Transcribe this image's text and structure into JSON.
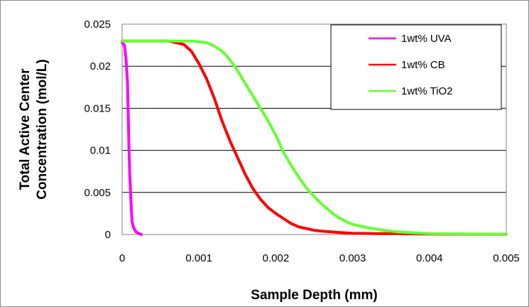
{
  "chart_data": {
    "type": "line",
    "title": "",
    "xlabel": "Sample Depth  (mm)",
    "ylabel": [
      "Total Active Center",
      "Concentration  (mol/L)"
    ],
    "xlim": [
      0,
      0.005
    ],
    "ylim": [
      0,
      0.025
    ],
    "xticks": [
      "0",
      "0.001",
      "0.002",
      "0.003",
      "0.004",
      "0.005"
    ],
    "yticks": [
      "0",
      "0.005",
      "0.01",
      "0.015",
      "0.02",
      "0.025"
    ],
    "grid": "horizontal",
    "legend_position": "top-right",
    "series": [
      {
        "name": "1wt% UVA",
        "color": "#ff00ff",
        "x": [
          0,
          3e-05,
          5e-05,
          7e-05,
          8e-05,
          9e-05,
          0.0001,
          0.00011,
          0.00012,
          0.00013,
          0.00015,
          0.00018,
          0.00022,
          0.00025
        ],
        "y": [
          0.0228,
          0.0225,
          0.021,
          0.018,
          0.014,
          0.01,
          0.007,
          0.005,
          0.003,
          0.0015,
          0.0008,
          0.0003,
          0.0001,
          0.0
        ]
      },
      {
        "name": "1wt% CB",
        "color": "#ff0000",
        "x": [
          0,
          0.0003,
          0.0006,
          0.0008,
          0.0009,
          0.001,
          0.0011,
          0.0012,
          0.0013,
          0.0014,
          0.0015,
          0.0016,
          0.0017,
          0.0018,
          0.0019,
          0.002,
          0.0021,
          0.0022,
          0.0023,
          0.0024,
          0.0025,
          0.0026,
          0.0028,
          0.003,
          0.0033,
          0.0036,
          0.004,
          0.0045,
          0.005
        ],
        "y": [
          0.023,
          0.023,
          0.023,
          0.0226,
          0.0218,
          0.0203,
          0.0185,
          0.0162,
          0.0135,
          0.0112,
          0.0092,
          0.0072,
          0.0055,
          0.0042,
          0.0032,
          0.0025,
          0.0019,
          0.0013,
          0.0009,
          0.0007,
          0.0005,
          0.0004,
          0.00025,
          0.00015,
          0.0001,
          0.0001,
          5e-05,
          3e-05,
          2e-05
        ]
      },
      {
        "name": "1wt% TiO2",
        "color": "#66ff33",
        "x": [
          0,
          0.0005,
          0.0009,
          0.0011,
          0.0012,
          0.0013,
          0.0014,
          0.0015,
          0.0016,
          0.0017,
          0.0018,
          0.0019,
          0.002,
          0.0021,
          0.0022,
          0.0023,
          0.0024,
          0.0025,
          0.0026,
          0.0027,
          0.0028,
          0.0029,
          0.003,
          0.0032,
          0.0034,
          0.0036,
          0.0038,
          0.004,
          0.0045,
          0.005
        ],
        "y": [
          0.023,
          0.023,
          0.023,
          0.0228,
          0.0224,
          0.0218,
          0.0208,
          0.0195,
          0.018,
          0.0165,
          0.015,
          0.0135,
          0.0118,
          0.0098,
          0.0082,
          0.0068,
          0.0055,
          0.0045,
          0.0036,
          0.0028,
          0.0021,
          0.0016,
          0.0012,
          0.0008,
          0.0005,
          0.0003,
          0.0002,
          0.0001,
          5e-05,
          3e-05
        ]
      }
    ]
  }
}
